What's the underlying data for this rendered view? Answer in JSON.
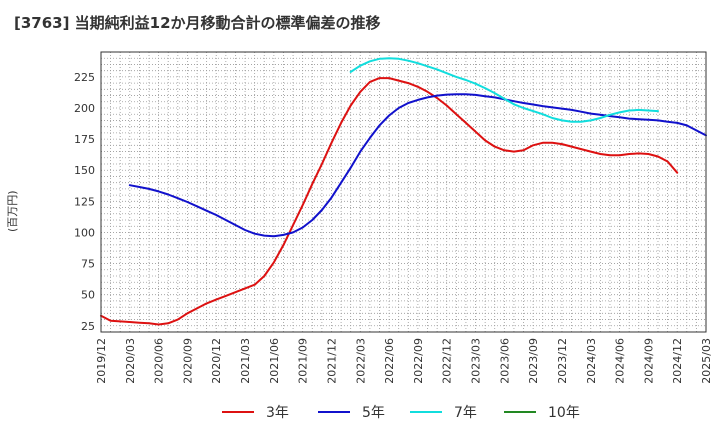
{
  "chart_data": {
    "type": "line",
    "title": "[3763]  当期純利益12か月移動合計の標準偏差の推移",
    "ylabel": "(百万円)",
    "ylim": [
      20,
      245
    ],
    "yticks": [
      25,
      50,
      75,
      100,
      125,
      150,
      175,
      200,
      225
    ],
    "x_tick_labels": [
      "2019/12",
      "2020/03",
      "2020/06",
      "2020/09",
      "2020/12",
      "2021/03",
      "2021/06",
      "2021/09",
      "2021/12",
      "2022/03",
      "2022/06",
      "2022/09",
      "2022/12",
      "2023/03",
      "2023/06",
      "2023/09",
      "2023/12",
      "2024/03",
      "2024/06",
      "2024/09",
      "2024/12",
      "2025/03"
    ],
    "grid": true,
    "legend_position": "bottom",
    "series": [
      {
        "name": "3年",
        "color": "#dd1111",
        "start": "2019/12",
        "values": [
          33,
          29,
          28.5,
          28,
          27.5,
          27,
          26,
          27,
          30,
          35,
          39,
          43,
          46,
          49,
          52,
          55,
          58,
          65,
          76,
          90,
          106,
          122,
          139,
          155,
          172,
          188,
          202,
          213,
          221,
          224,
          224,
          222,
          220,
          217,
          213,
          208,
          202,
          195,
          188,
          181,
          174,
          169,
          166,
          165,
          166,
          170,
          172,
          172,
          171,
          169,
          167,
          165,
          163,
          162,
          162,
          163,
          163.5,
          163,
          161,
          157,
          148
        ]
      },
      {
        "name": "5年",
        "color": "#1111cc",
        "start": "2020/03",
        "values": [
          138,
          136.5,
          135,
          133,
          130.5,
          127.5,
          124.5,
          121,
          117.5,
          114,
          110,
          106,
          102,
          99,
          97.5,
          97,
          98,
          100,
          104,
          110,
          118,
          128,
          140,
          152,
          165,
          176,
          186,
          194,
          200,
          204,
          206.5,
          208.5,
          210,
          210.8,
          211,
          211,
          210.5,
          209.5,
          208.5,
          207,
          205.5,
          204,
          202.8,
          201.5,
          200.5,
          199.5,
          198.5,
          197,
          195.5,
          194.5,
          193.5,
          192.5,
          191.5,
          191,
          190.5,
          190,
          189,
          188,
          186,
          182,
          178
        ]
      },
      {
        "name": "7年",
        "color": "#11dddd",
        "start": "2022/02",
        "values": [
          229,
          234,
          237.5,
          239.5,
          240,
          239.5,
          238,
          236,
          233.5,
          231,
          228,
          225,
          222.5,
          219.5,
          216,
          212,
          207.5,
          203,
          200,
          197.5,
          195,
          192,
          190,
          189,
          189,
          190,
          192,
          194.5,
          196.5,
          198,
          198.5,
          198,
          197.5
        ]
      },
      {
        "name": "10年",
        "color": "#228822",
        "start": "2019/12",
        "values": []
      }
    ]
  }
}
